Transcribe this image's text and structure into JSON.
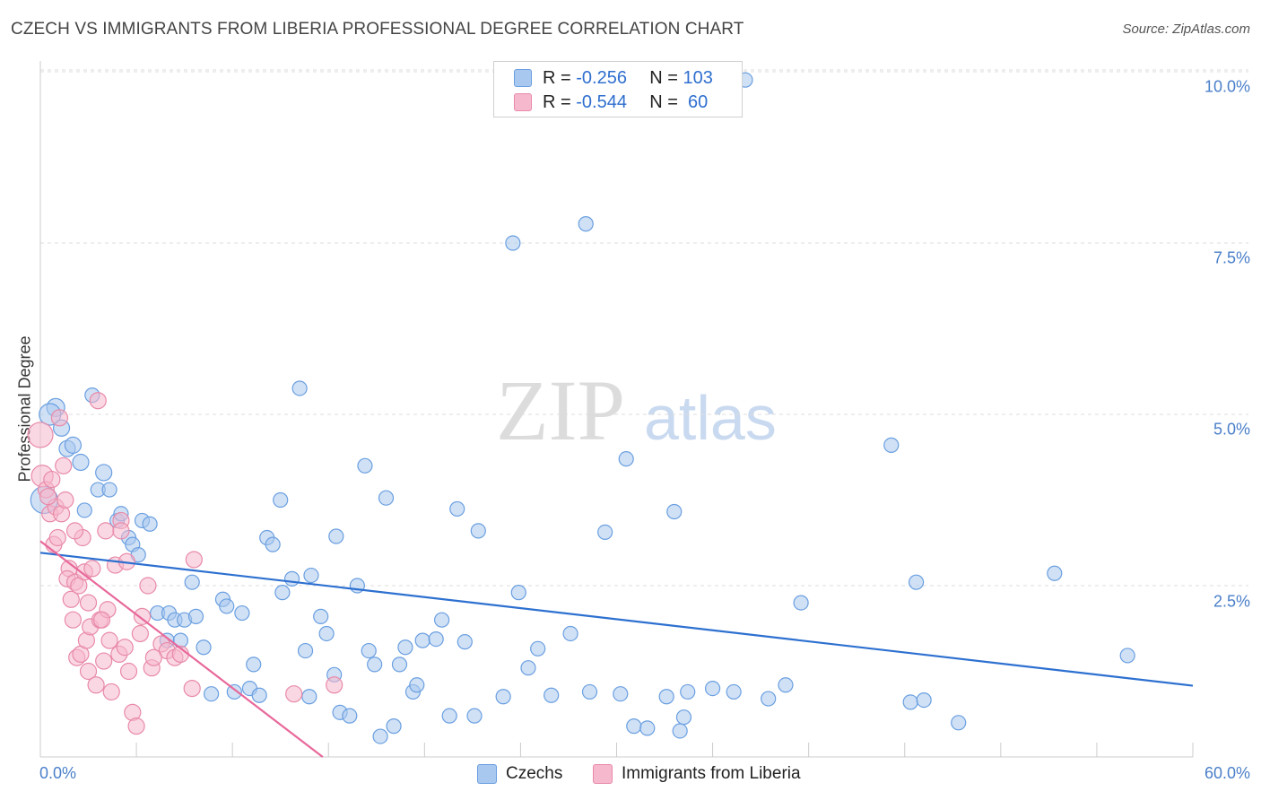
{
  "title": "CZECH VS IMMIGRANTS FROM LIBERIA PROFESSIONAL DEGREE CORRELATION CHART",
  "source": "Source: ZipAtlas.com",
  "watermark": {
    "zip": "ZIP",
    "atlas": "atlas"
  },
  "colors": {
    "czech_fill": "#a9c8ef",
    "czech_stroke": "#6a9fe0",
    "czech_line": "#2d70d0",
    "liberia_fill": "#f5b8cc",
    "liberia_stroke": "#e88aa8",
    "liberia_line": "#e8689a",
    "grid": "#dddddd",
    "axis_text": "#4a7fc9"
  },
  "legend": {
    "r_label": "R = ",
    "n_label": "N = ",
    "czech": {
      "r": "-0.256",
      "n": "103"
    },
    "liberia": {
      "r": "-0.544",
      "n": " 60"
    }
  },
  "bottom_legend": {
    "czech": "Czechs",
    "liberia": "Immigrants from Liberia"
  },
  "chart_data": {
    "type": "scatter",
    "title": "CZECH VS IMMIGRANTS FROM LIBERIA PROFESSIONAL DEGREE CORRELATION CHART",
    "xlabel": "",
    "ylabel": "Professional Degree",
    "xlim": [
      0,
      60
    ],
    "ylim": [
      0,
      10.0
    ],
    "x_tick_labels": [
      "0.0%",
      "60.0%"
    ],
    "y_ticks": [
      2.5,
      5.0,
      7.5,
      10.0
    ],
    "y_tick_labels": [
      "2.5%",
      "5.0%",
      "7.5%",
      "10.0%"
    ],
    "grid": "horizontal-dashed",
    "legend_position": "top-center",
    "series": [
      {
        "name": "Czechs",
        "r": -0.256,
        "n": 103,
        "trend": {
          "x": [
            0,
            60
          ],
          "y": [
            2.98,
            1.04
          ]
        },
        "points": [
          [
            0.2,
            3.75,
            15
          ],
          [
            0.8,
            5.1,
            10
          ],
          [
            0.5,
            5.0,
            12
          ],
          [
            1.1,
            4.8,
            9
          ],
          [
            1.4,
            4.5,
            9
          ],
          [
            1.7,
            4.55,
            9
          ],
          [
            2.1,
            4.3,
            9
          ],
          [
            2.7,
            5.28,
            8
          ],
          [
            3.3,
            4.15,
            9
          ],
          [
            3.0,
            3.9,
            8
          ],
          [
            3.6,
            3.9,
            8
          ],
          [
            2.3,
            3.6,
            8
          ],
          [
            4.0,
            3.45,
            8
          ],
          [
            4.2,
            3.55,
            8
          ],
          [
            4.6,
            3.2,
            8
          ],
          [
            4.8,
            3.1,
            8
          ],
          [
            5.1,
            2.95,
            8
          ],
          [
            5.3,
            3.45,
            8
          ],
          [
            5.7,
            3.4,
            8
          ],
          [
            6.1,
            2.1,
            8
          ],
          [
            6.6,
            1.7,
            8
          ],
          [
            6.7,
            2.1,
            8
          ],
          [
            7.0,
            2.0,
            8
          ],
          [
            7.3,
            1.7,
            8
          ],
          [
            7.5,
            2.0,
            8
          ],
          [
            7.9,
            2.55,
            8
          ],
          [
            8.1,
            2.05,
            8
          ],
          [
            8.5,
            1.6,
            8
          ],
          [
            8.9,
            0.92,
            8
          ],
          [
            9.5,
            2.3,
            8
          ],
          [
            9.7,
            2.2,
            8
          ],
          [
            10.1,
            0.95,
            8
          ],
          [
            10.5,
            2.1,
            8
          ],
          [
            10.9,
            1.0,
            8
          ],
          [
            11.1,
            1.35,
            8
          ],
          [
            11.4,
            0.9,
            8
          ],
          [
            11.8,
            3.2,
            8
          ],
          [
            12.1,
            3.1,
            8
          ],
          [
            12.5,
            3.75,
            8
          ],
          [
            12.6,
            2.4,
            8
          ],
          [
            13.1,
            2.6,
            8
          ],
          [
            13.5,
            5.38,
            8
          ],
          [
            13.8,
            1.55,
            8
          ],
          [
            14.0,
            0.88,
            8
          ],
          [
            14.1,
            2.65,
            8
          ],
          [
            14.6,
            2.05,
            8
          ],
          [
            14.9,
            1.8,
            8
          ],
          [
            15.3,
            1.2,
            8
          ],
          [
            15.4,
            3.22,
            8
          ],
          [
            15.6,
            0.65,
            8
          ],
          [
            16.1,
            0.6,
            8
          ],
          [
            16.5,
            2.5,
            8
          ],
          [
            16.9,
            4.25,
            8
          ],
          [
            17.1,
            1.55,
            8
          ],
          [
            17.4,
            1.35,
            8
          ],
          [
            17.7,
            0.3,
            8
          ],
          [
            18.0,
            3.78,
            8
          ],
          [
            18.4,
            0.45,
            8
          ],
          [
            18.7,
            1.35,
            8
          ],
          [
            19.0,
            1.6,
            8
          ],
          [
            19.4,
            0.95,
            8
          ],
          [
            19.6,
            1.05,
            8
          ],
          [
            19.9,
            1.7,
            8
          ],
          [
            20.6,
            1.72,
            8
          ],
          [
            20.9,
            2.0,
            8
          ],
          [
            21.3,
            0.6,
            8
          ],
          [
            21.7,
            3.62,
            8
          ],
          [
            22.1,
            1.68,
            8
          ],
          [
            22.6,
            0.6,
            8
          ],
          [
            22.8,
            3.3,
            8
          ],
          [
            24.1,
            0.88,
            8
          ],
          [
            24.6,
            7.5,
            8
          ],
          [
            24.9,
            2.4,
            8
          ],
          [
            25.4,
            1.3,
            8
          ],
          [
            25.9,
            1.58,
            8
          ],
          [
            26.6,
            0.9,
            8
          ],
          [
            27.6,
            1.8,
            8
          ],
          [
            28.4,
            7.78,
            8
          ],
          [
            28.6,
            0.95,
            8
          ],
          [
            29.4,
            3.28,
            8
          ],
          [
            30.2,
            0.92,
            8
          ],
          [
            30.5,
            4.35,
            8
          ],
          [
            30.9,
            0.45,
            8
          ],
          [
            31.6,
            0.42,
            8
          ],
          [
            32.6,
            0.88,
            8
          ],
          [
            33.0,
            3.58,
            8
          ],
          [
            33.3,
            0.38,
            8
          ],
          [
            33.5,
            0.58,
            8
          ],
          [
            33.7,
            0.95,
            8
          ],
          [
            35.0,
            1.0,
            8
          ],
          [
            36.1,
            0.95,
            8
          ],
          [
            37.9,
            0.85,
            8
          ],
          [
            38.8,
            1.05,
            8
          ],
          [
            39.6,
            2.25,
            8
          ],
          [
            44.3,
            4.55,
            8
          ],
          [
            45.3,
            0.8,
            8
          ],
          [
            45.6,
            2.55,
            8
          ],
          [
            46.0,
            0.83,
            8
          ],
          [
            47.8,
            0.5,
            8
          ],
          [
            52.8,
            2.68,
            8
          ],
          [
            56.6,
            1.48,
            8
          ],
          [
            36.7,
            9.88,
            8
          ]
        ]
      },
      {
        "name": "Immigrants from Liberia",
        "r": -0.544,
        "n": 60,
        "trend": {
          "x": [
            0,
            14.7
          ],
          "y": [
            3.15,
            0.0
          ]
        },
        "points": [
          [
            0.0,
            4.7,
            14
          ],
          [
            0.1,
            4.1,
            12
          ],
          [
            0.3,
            3.9,
            9
          ],
          [
            0.5,
            3.55,
            9
          ],
          [
            0.6,
            4.05,
            9
          ],
          [
            0.8,
            3.65,
            9
          ],
          [
            0.7,
            3.1,
            9
          ],
          [
            0.9,
            3.2,
            9
          ],
          [
            1.1,
            3.55,
            9
          ],
          [
            1.2,
            4.25,
            9
          ],
          [
            1.3,
            3.75,
            9
          ],
          [
            1.5,
            2.75,
            9
          ],
          [
            1.4,
            2.6,
            9
          ],
          [
            1.6,
            2.3,
            9
          ],
          [
            1.8,
            2.55,
            9
          ],
          [
            1.7,
            2.0,
            9
          ],
          [
            1.9,
            1.45,
            9
          ],
          [
            2.0,
            2.5,
            9
          ],
          [
            2.2,
            3.2,
            9
          ],
          [
            2.1,
            1.5,
            9
          ],
          [
            2.3,
            2.7,
            9
          ],
          [
            2.4,
            1.7,
            9
          ],
          [
            2.5,
            1.25,
            9
          ],
          [
            2.6,
            1.9,
            9
          ],
          [
            2.7,
            2.75,
            9
          ],
          [
            2.9,
            1.05,
            9
          ],
          [
            3.0,
            5.2,
            9
          ],
          [
            3.1,
            2.0,
            9
          ],
          [
            3.3,
            1.4,
            9
          ],
          [
            3.4,
            3.3,
            9
          ],
          [
            3.5,
            2.15,
            9
          ],
          [
            3.6,
            1.7,
            9
          ],
          [
            3.7,
            0.95,
            9
          ],
          [
            3.9,
            2.8,
            9
          ],
          [
            4.1,
            1.5,
            9
          ],
          [
            4.2,
            3.45,
            9
          ],
          [
            4.4,
            1.6,
            9
          ],
          [
            4.5,
            2.85,
            9
          ],
          [
            4.6,
            1.25,
            9
          ],
          [
            4.8,
            0.65,
            9
          ],
          [
            5.0,
            0.45,
            9
          ],
          [
            5.2,
            1.8,
            9
          ],
          [
            5.3,
            2.05,
            9
          ],
          [
            5.6,
            2.5,
            9
          ],
          [
            5.8,
            1.3,
            9
          ],
          [
            6.3,
            1.65,
            9
          ],
          [
            6.6,
            1.55,
            9
          ],
          [
            7.0,
            1.45,
            9
          ],
          [
            7.3,
            1.5,
            9
          ],
          [
            7.9,
            1.0,
            9
          ],
          [
            8.0,
            2.88,
            9
          ],
          [
            13.2,
            0.92,
            9
          ],
          [
            15.3,
            1.05,
            9
          ],
          [
            1.0,
            4.95,
            9
          ],
          [
            0.4,
            3.8,
            9
          ],
          [
            1.8,
            3.3,
            9
          ],
          [
            2.5,
            2.25,
            9
          ],
          [
            4.2,
            3.3,
            9
          ],
          [
            5.9,
            1.45,
            9
          ],
          [
            3.2,
            2.0,
            9
          ]
        ]
      }
    ]
  }
}
